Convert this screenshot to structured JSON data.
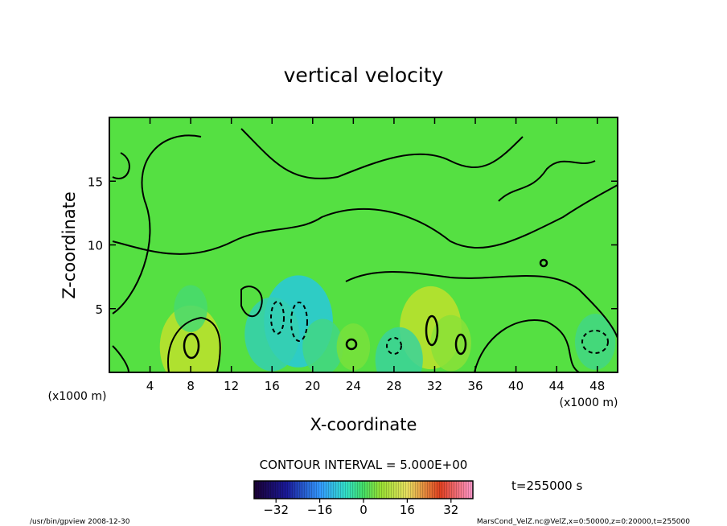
{
  "chart_data": {
    "type": "heatmap",
    "title": "vertical velocity",
    "xlabel": "X-coordinate",
    "ylabel": "Z-coordinate",
    "x_unit_left": "(x1000 m)",
    "x_unit_right": "(x1000 m)",
    "xlim": [
      0,
      50
    ],
    "ylim": [
      0,
      20
    ],
    "x_ticks": [
      4,
      8,
      12,
      16,
      20,
      24,
      28,
      32,
      36,
      40,
      44,
      48
    ],
    "y_ticks": [
      5,
      10,
      15
    ],
    "contour_interval_label": "CONTOUR INTERVAL = 5.000E+00",
    "time_label": "t=255000 s",
    "colorbar": {
      "range": [
        -40,
        40
      ],
      "tick_values": [
        -32,
        -16,
        0,
        16,
        32
      ],
      "tick_labels": [
        "−32",
        "−16",
        "0",
        "16",
        "32"
      ]
    },
    "features": [
      {
        "x": 8.0,
        "z": 2.0,
        "w": 12
      },
      {
        "x": 31.6,
        "z": 3.5,
        "w": 12
      },
      {
        "x": 33.6,
        "z": 2.3,
        "w": 6
      },
      {
        "x": 18.6,
        "z": 4.0,
        "w": -14
      },
      {
        "x": 16.0,
        "z": 3.0,
        "w": -10
      },
      {
        "x": 21.0,
        "z": 2.0,
        "w": -6
      },
      {
        "x": 47.8,
        "z": 2.4,
        "w": -6
      },
      {
        "x": 28.5,
        "z": 1.0,
        "w": -8
      },
      {
        "x": 24.0,
        "z": 2.0,
        "w": 4
      },
      {
        "x": 8.0,
        "z": 5.0,
        "w": -4
      }
    ],
    "grid": false
  },
  "footer": {
    "left": "/usr/bin/gpview   2008-12-30",
    "right": "MarsCond_VelZ.nc@VelZ,x=0:50000,z=0:20000,t=255000"
  }
}
